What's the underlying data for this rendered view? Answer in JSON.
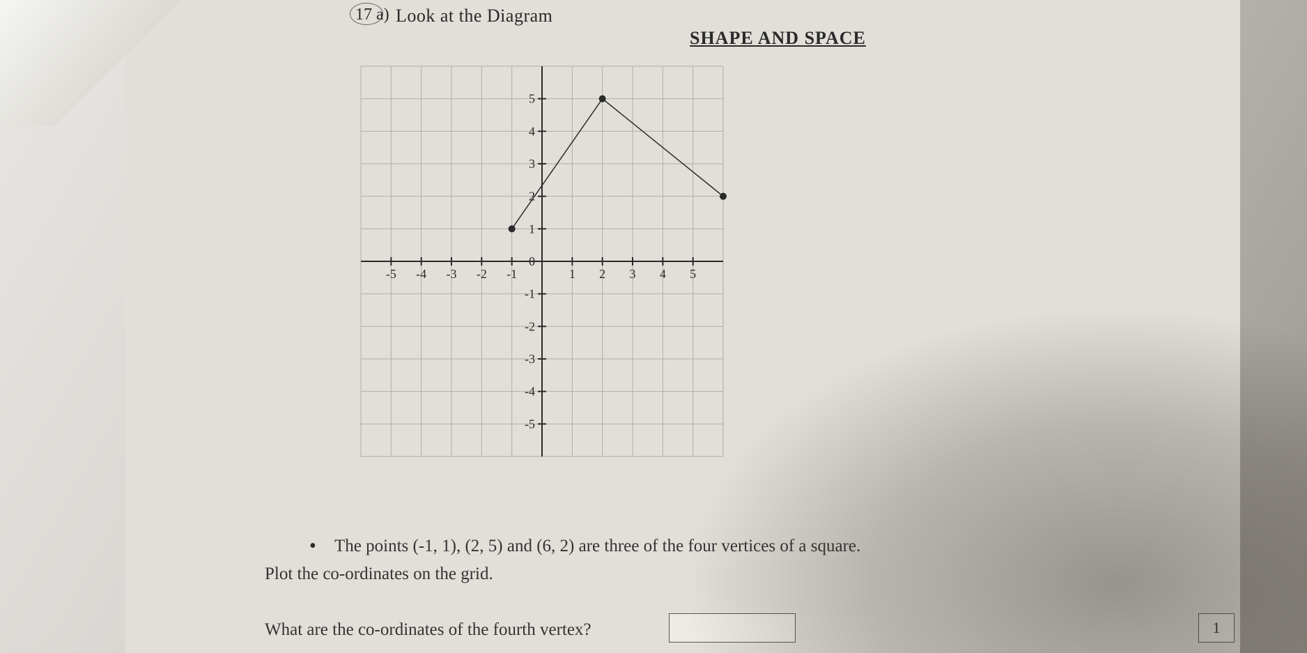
{
  "question": {
    "number": "17 a)",
    "prompt": "Look at the Diagram"
  },
  "heading": "SHAPE AND SPACE",
  "chart": {
    "type": "scatter-line",
    "xlim": [
      -6,
      6
    ],
    "ylim": [
      -6,
      6
    ],
    "xtick_min": -5,
    "xtick_max": 5,
    "xtick_step": 1,
    "ytick_min": -5,
    "ytick_max": 5,
    "ytick_step": 1,
    "grid_color": "#b0aea8",
    "axis_color": "#2a2a2a",
    "axis_width": 2,
    "grid_width": 1,
    "tick_label_fontsize": 18,
    "tick_label_color": "#2a2a2a",
    "background_color": "#e2dfd9",
    "points": [
      {
        "x": -1,
        "y": 1
      },
      {
        "x": 2,
        "y": 5
      },
      {
        "x": 6,
        "y": 2
      }
    ],
    "point_radius": 5,
    "point_color": "#2a2a2a",
    "segments": [
      {
        "from": 0,
        "to": 1
      },
      {
        "from": 1,
        "to": 2
      }
    ],
    "line_color": "#2a2a2a",
    "line_width": 1.5
  },
  "body": {
    "bullet": "•",
    "line1": "The points (-1, 1), (2, 5) and (6, 2) are three of the four vertices of a square.",
    "line2": "Plot the co-ordinates on the grid.",
    "line3": "What are the co-ordinates of the fourth vertex?"
  },
  "score": "1"
}
